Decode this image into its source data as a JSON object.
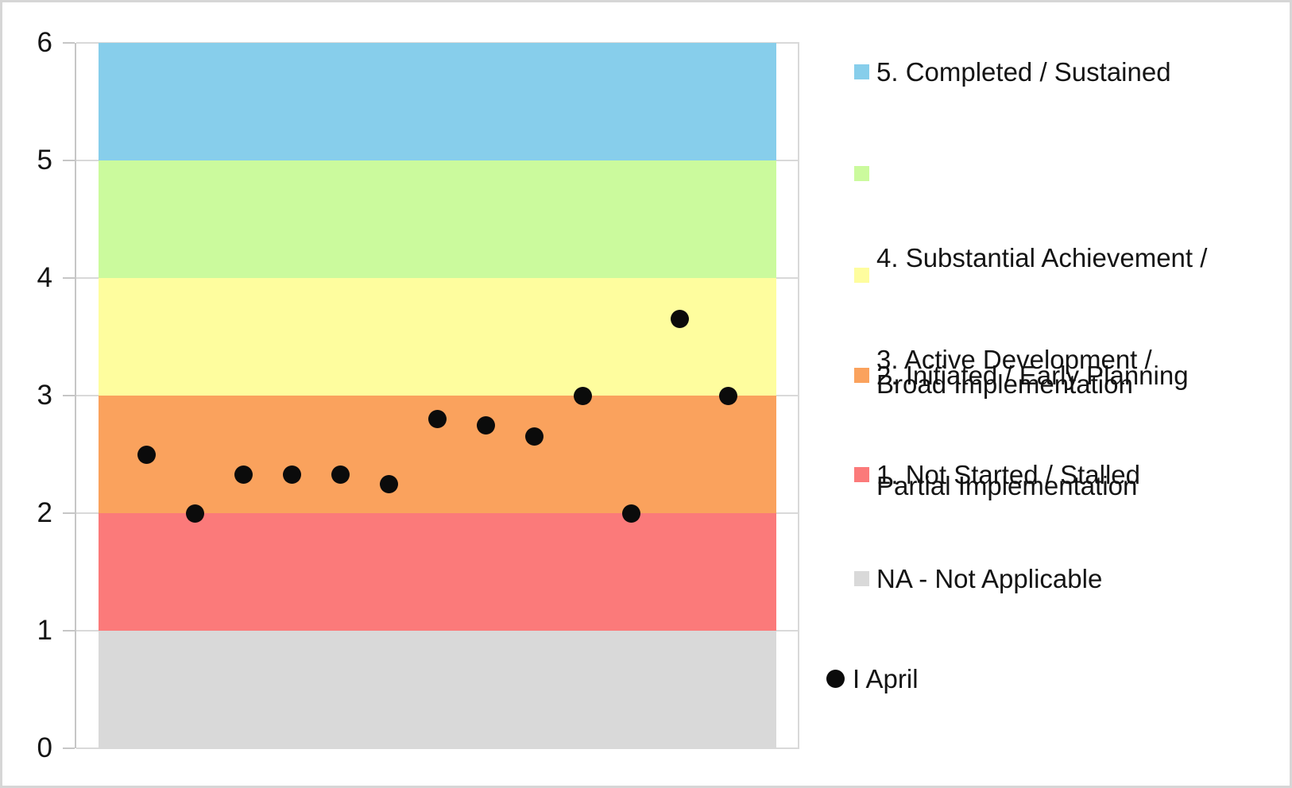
{
  "chart_data": {
    "type": "scatter",
    "title": "",
    "xlabel": "",
    "ylabel": "",
    "x_domain": [
      0,
      14
    ],
    "y_domain": [
      0,
      6
    ],
    "y_ticks": [
      0,
      1,
      2,
      3,
      4,
      5,
      6
    ],
    "grid": true,
    "legend_position": "right",
    "bands": [
      {
        "label": "5. Completed / Sustained",
        "from": 5,
        "to": 6,
        "color": "#87CEEB"
      },
      {
        "label": "4. Substantial Achievement / Broad Implementation",
        "from": 4,
        "to": 5,
        "color": "#CBFA9D"
      },
      {
        "label": "3. Active Development / Partial Implementation",
        "from": 3,
        "to": 4,
        "color": "#FEFD9E"
      },
      {
        "label": "2. Initiated / Early Planning",
        "from": 2,
        "to": 3,
        "color": "#FAA25D"
      },
      {
        "label": "1. Not Started / Stalled",
        "from": 1,
        "to": 2,
        "color": "#FB7A7A"
      },
      {
        "label": "NA - Not Applicable",
        "from": 0,
        "to": 1,
        "color": "#D9D9D9"
      }
    ],
    "series": [
      {
        "name": "I April",
        "marker": "circle",
        "color": "#0b0b0b",
        "x": [
          1,
          2,
          3,
          4,
          5,
          6,
          7,
          8,
          9,
          10,
          11,
          12,
          13
        ],
        "y": [
          2.5,
          2.0,
          2.33,
          2.33,
          2.33,
          2.25,
          2.8,
          2.75,
          2.65,
          3.0,
          2.0,
          3.65,
          3.0
        ]
      }
    ]
  },
  "legend": {
    "items": [
      {
        "type": "swatch",
        "color": "#87CEEB",
        "lines": [
          "5. Completed / Sustained"
        ]
      },
      {
        "type": "swatch",
        "color": "#CBFA9D",
        "lines": [
          "4. Substantial Achievement /",
          "Broad Implementation"
        ]
      },
      {
        "type": "swatch",
        "color": "#FEFD9E",
        "lines": [
          "3. Active Development /",
          "Partial Implementation"
        ]
      },
      {
        "type": "swatch",
        "color": "#FAA25D",
        "lines": [
          "2. Initiated / Early Planning"
        ]
      },
      {
        "type": "swatch",
        "color": "#FB7A7A",
        "lines": [
          "1. Not Started / Stalled"
        ]
      },
      {
        "type": "swatch",
        "color": "#D9D9D9",
        "lines": [
          "NA - Not Applicable"
        ]
      },
      {
        "type": "dot",
        "color": "#0b0b0b",
        "lines": [
          "I April"
        ]
      }
    ]
  }
}
